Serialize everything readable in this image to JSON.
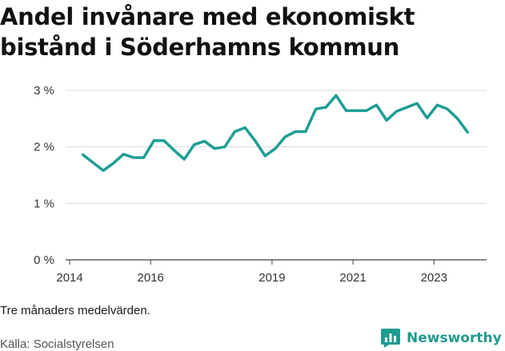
{
  "title": "Andel invånare med ekonomiskt bistånd i Söderhamns kommun",
  "note": "Tre månaders medelvärden.",
  "source": "Källa: Socialstyrelsen",
  "brand": {
    "name": "Newsworthy",
    "logo_icon": "bar-chart-logo-icon"
  },
  "colors": {
    "line": "#1f9e94",
    "grid": "#dcdcdc",
    "axis": "#444444"
  },
  "chart_data": {
    "type": "line",
    "title": "Andel invånare med ekonomiskt bistånd i Söderhamns kommun",
    "xlabel": "",
    "ylabel": "",
    "xlim": [
      2013.9,
      2024.3
    ],
    "ylim": [
      0,
      3
    ],
    "y_ticks": [
      0,
      1,
      2,
      3
    ],
    "y_tick_labels": [
      "0 %",
      "1 %",
      "2 %",
      "3 %"
    ],
    "x_ticks": [
      2014,
      2016,
      2019,
      2021,
      2023
    ],
    "x_tick_labels": [
      "2014",
      "2016",
      "2019",
      "2021",
      "2023"
    ],
    "grid": true,
    "legend": "none",
    "series": [
      {
        "x": [
          2014.33,
          2014.58,
          2014.83,
          2015.08,
          2015.33,
          2015.58,
          2015.83,
          2016.08,
          2016.33,
          2016.58,
          2016.83,
          2017.08,
          2017.33,
          2017.58,
          2017.83,
          2018.08,
          2018.33,
          2018.58,
          2018.83,
          2019.08,
          2019.33,
          2019.58,
          2019.83,
          2020.08,
          2020.33,
          2020.58,
          2020.83,
          2021.08,
          2021.33,
          2021.58,
          2021.83,
          2022.08,
          2022.33,
          2022.58,
          2022.83,
          2023.08,
          2023.33,
          2023.58,
          2023.83
        ],
        "values": [
          1.86,
          1.72,
          1.58,
          1.71,
          1.87,
          1.81,
          1.81,
          2.11,
          2.11,
          1.94,
          1.78,
          2.04,
          2.1,
          1.97,
          2.0,
          2.27,
          2.34,
          2.11,
          1.84,
          1.97,
          2.18,
          2.27,
          2.27,
          2.67,
          2.7,
          2.91,
          2.64,
          2.64,
          2.64,
          2.74,
          2.47,
          2.63,
          2.7,
          2.77,
          2.51,
          2.74,
          2.67,
          2.5,
          2.26
        ]
      }
    ]
  }
}
